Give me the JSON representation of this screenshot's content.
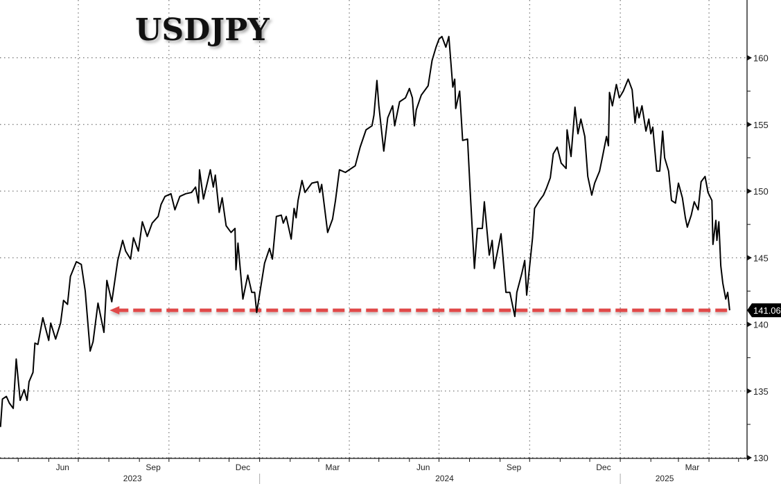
{
  "chart_data": {
    "type": "line",
    "title": "USDJPY",
    "xlabel": "",
    "ylabel": "",
    "ylim": [
      130,
      164.3
    ],
    "grid": true,
    "y_ticks": [
      "130",
      "135",
      "140",
      "145",
      "150",
      "155",
      "160"
    ],
    "x_month_ticks": [
      {
        "label": "Jun",
        "date": "2023-06-15"
      },
      {
        "label": "Sep",
        "date": "2023-09-15"
      },
      {
        "label": "Dec",
        "date": "2023-12-15"
      },
      {
        "label": "Mar",
        "date": "2024-03-15"
      },
      {
        "label": "Jun",
        "date": "2024-06-15"
      },
      {
        "label": "Sep",
        "date": "2024-09-15"
      },
      {
        "label": "Dec",
        "date": "2024-12-15"
      },
      {
        "label": "Mar",
        "date": "2025-03-15"
      }
    ],
    "x_year_ticks": [
      {
        "label": "2023",
        "date": "2023-09-01"
      },
      {
        "label": "2024",
        "date": "2024-07-01"
      },
      {
        "label": "2025",
        "date": "2025-02-15"
      }
    ],
    "last_value_label": "141.06",
    "reference_line": {
      "value": 141.06,
      "from": "2023-07-30",
      "to": "2025-04-22",
      "style": "dashed",
      "arrow": "left",
      "color": "#e04a4a"
    },
    "line_color": "#000000",
    "series": [
      {
        "x": [
          "2023-04-13",
          "2023-04-15",
          "2023-04-19",
          "2023-04-22",
          "2023-04-26",
          "2023-04-29",
          "2023-05-03",
          "2023-05-07",
          "2023-05-10",
          "2023-05-12",
          "2023-05-16",
          "2023-05-18",
          "2023-05-21",
          "2023-05-26",
          "2023-06-01",
          "2023-06-03",
          "2023-06-08",
          "2023-06-13",
          "2023-06-16",
          "2023-06-20",
          "2023-06-23",
          "2023-06-29",
          "2023-07-04",
          "2023-07-08",
          "2023-07-13",
          "2023-07-16",
          "2023-07-21",
          "2023-07-27",
          "2023-07-30",
          "2023-08-04",
          "2023-08-10",
          "2023-08-15",
          "2023-08-18",
          "2023-08-23",
          "2023-08-26",
          "2023-08-31",
          "2023-09-04",
          "2023-09-09",
          "2023-09-14",
          "2023-09-20",
          "2023-09-23",
          "2023-09-27",
          "2023-10-03",
          "2023-10-07",
          "2023-10-12",
          "2023-10-18",
          "2023-10-24",
          "2023-10-28",
          "2023-10-31",
          "2023-11-01",
          "2023-11-05",
          "2023-11-12",
          "2023-11-15",
          "2023-11-17",
          "2023-11-21",
          "2023-11-24",
          "2023-11-28",
          "2023-12-03",
          "2023-12-07",
          "2023-12-08",
          "2023-12-10",
          "2023-12-15",
          "2023-12-20",
          "2023-12-24",
          "2023-12-27",
          "2023-12-29",
          "2024-01-06",
          "2024-01-11",
          "2024-01-14",
          "2024-01-18",
          "2024-01-23",
          "2024-01-25",
          "2024-01-28",
          "2024-02-02",
          "2024-02-05",
          "2024-02-07",
          "2024-02-09",
          "2024-02-13",
          "2024-02-16",
          "2024-02-23",
          "2024-02-29",
          "2024-03-02",
          "2024-03-04",
          "2024-03-10",
          "2024-03-15",
          "2024-03-18",
          "2024-03-22",
          "2024-03-28",
          "2024-04-07",
          "2024-04-12",
          "2024-04-18",
          "2024-04-24",
          "2024-04-26",
          "2024-04-29",
          "2024-05-01",
          "2024-05-06",
          "2024-05-10",
          "2024-05-15",
          "2024-05-17",
          "2024-05-22",
          "2024-05-28",
          "2024-06-01",
          "2024-06-04",
          "2024-06-06",
          "2024-06-08",
          "2024-06-13",
          "2024-06-20",
          "2024-06-24",
          "2024-06-28",
          "2024-07-01",
          "2024-07-04",
          "2024-07-08",
          "2024-07-11",
          "2024-07-15",
          "2024-07-17",
          "2024-07-18",
          "2024-07-22",
          "2024-07-25",
          "2024-07-30",
          "2024-08-02",
          "2024-08-06",
          "2024-08-09",
          "2024-08-14",
          "2024-08-16",
          "2024-08-21",
          "2024-08-24",
          "2024-08-26",
          "2024-09-02",
          "2024-09-07",
          "2024-09-11",
          "2024-09-16",
          "2024-09-18",
          "2024-09-23",
          "2024-09-26",
          "2024-09-28",
          "2024-10-04",
          "2024-10-06",
          "2024-10-11",
          "2024-10-15",
          "2024-10-18",
          "2024-10-22",
          "2024-10-25",
          "2024-10-29",
          "2024-11-02",
          "2024-11-07",
          "2024-11-08",
          "2024-11-12",
          "2024-11-16",
          "2024-11-19",
          "2024-11-22",
          "2024-11-26",
          "2024-11-29",
          "2024-12-03",
          "2024-12-06",
          "2024-12-11",
          "2024-12-14",
          "2024-12-18",
          "2024-12-20",
          "2024-12-21",
          "2024-12-24",
          "2024-12-28",
          "2024-12-31",
          "2025-01-04",
          "2025-01-09",
          "2025-01-13",
          "2025-01-16",
          "2025-01-18",
          "2025-01-20",
          "2025-01-23",
          "2025-01-27",
          "2025-01-30",
          "2025-02-01",
          "2025-02-03",
          "2025-02-07",
          "2025-02-10",
          "2025-02-13",
          "2025-02-15",
          "2025-02-19",
          "2025-02-22",
          "2025-02-26",
          "2025-03-01",
          "2025-03-05",
          "2025-03-08",
          "2025-03-10",
          "2025-03-14",
          "2025-03-17",
          "2025-03-21",
          "2025-03-24",
          "2025-03-28",
          "2025-03-31",
          "2025-04-04",
          "2025-04-05",
          "2025-04-08",
          "2025-04-09",
          "2025-04-11",
          "2025-04-13",
          "2025-04-15",
          "2025-04-18",
          "2025-04-20",
          "2025-04-22"
        ],
        "values": [
          132.3,
          134.4,
          134.6,
          134.1,
          133.7,
          137.4,
          134.3,
          135.1,
          134.3,
          135.7,
          136.4,
          138.6,
          138.5,
          140.5,
          138.8,
          140.1,
          138.9,
          140.1,
          141.8,
          141.5,
          143.6,
          144.7,
          144.5,
          142.5,
          138.0,
          138.7,
          141.6,
          139.4,
          143.3,
          141.7,
          144.8,
          146.3,
          145.5,
          144.9,
          146.5,
          145.5,
          147.7,
          146.6,
          147.6,
          148.1,
          149.0,
          149.6,
          149.8,
          148.6,
          149.6,
          149.8,
          149.9,
          150.3,
          149.1,
          151.6,
          149.4,
          151.6,
          150.3,
          151.2,
          148.4,
          149.5,
          147.4,
          146.9,
          147.2,
          144.1,
          146.1,
          141.9,
          143.7,
          142.4,
          142.4,
          140.9,
          144.6,
          145.7,
          144.9,
          148.1,
          148.2,
          147.6,
          148.1,
          146.4,
          148.7,
          148.0,
          149.3,
          150.8,
          149.9,
          150.6,
          150.7,
          149.9,
          150.5,
          146.9,
          147.9,
          149.3,
          151.6,
          151.4,
          151.9,
          153.3,
          154.6,
          154.9,
          155.7,
          158.3,
          156.4,
          153.0,
          155.5,
          156.4,
          154.9,
          156.7,
          157.0,
          157.7,
          157.0,
          154.9,
          156.1,
          157.2,
          157.9,
          159.8,
          160.8,
          161.4,
          161.6,
          160.8,
          161.6,
          157.8,
          158.4,
          156.2,
          157.5,
          153.8,
          153.9,
          149.5,
          144.2,
          147.2,
          147.2,
          149.2,
          145.2,
          146.3,
          144.2,
          146.8,
          142.4,
          142.4,
          140.6,
          142.4,
          143.8,
          144.8,
          142.2,
          146.5,
          148.7,
          149.3,
          149.7,
          150.2,
          151.0,
          152.8,
          153.3,
          152.1,
          151.7,
          154.6,
          152.6,
          156.3,
          154.3,
          155.4,
          154.1,
          151.1,
          149.7,
          150.6,
          151.5,
          152.6,
          154.1,
          153.4,
          157.4,
          156.4,
          158.0,
          157.0,
          157.5,
          158.4,
          157.6,
          155.1,
          156.3,
          155.5,
          156.4,
          154.5,
          155.4,
          154.3,
          154.8,
          151.5,
          151.5,
          154.5,
          152.5,
          151.5,
          149.3,
          149.1,
          150.6,
          149.5,
          148.0,
          147.3,
          148.2,
          149.2,
          148.6,
          150.7,
          151.1,
          149.9,
          149.3,
          146.0,
          147.8,
          146.3,
          147.7,
          144.4,
          143.1,
          141.9,
          142.4,
          141.06
        ]
      }
    ]
  }
}
